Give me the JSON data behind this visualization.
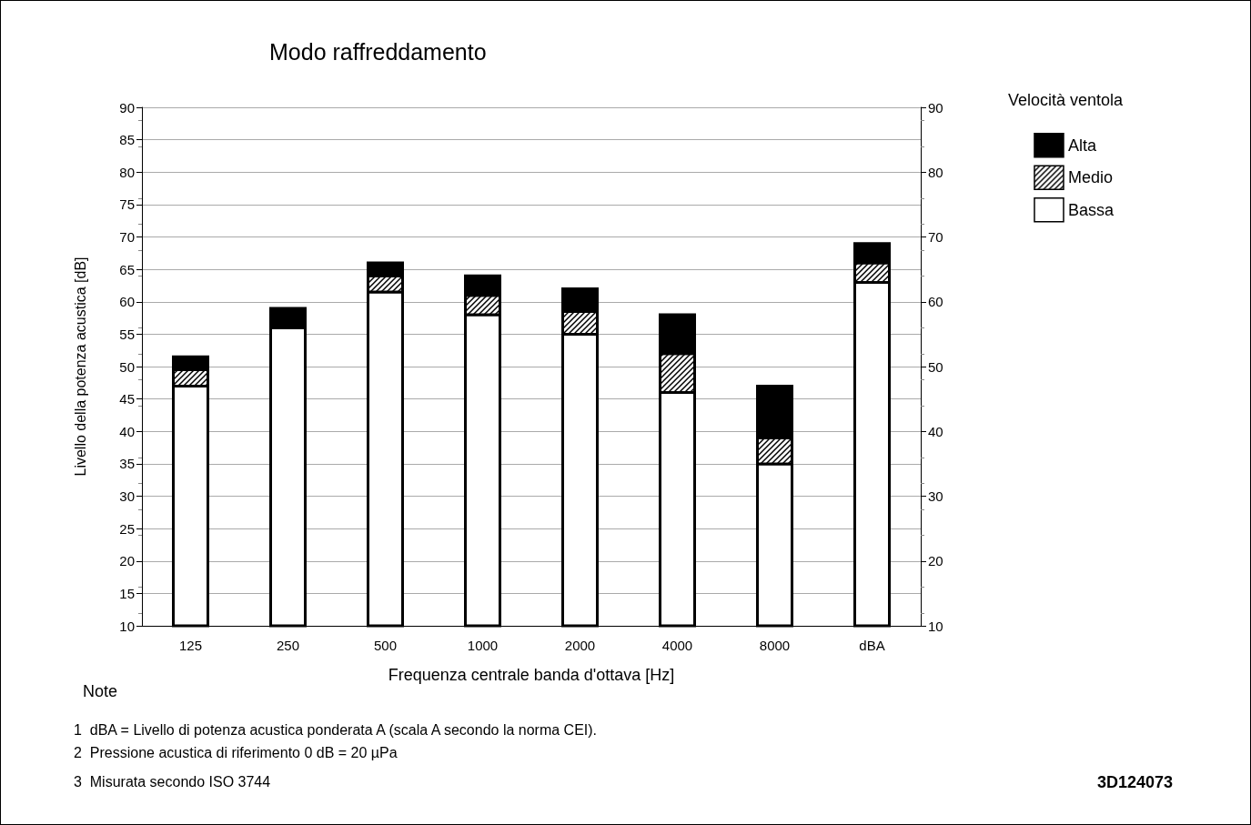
{
  "chart_data": {
    "type": "bar",
    "title": "Modo raffreddamento",
    "categories": [
      "125",
      "250",
      "500",
      "1000",
      "2000",
      "4000",
      "8000",
      "dBA"
    ],
    "series": [
      {
        "name": "Bassa",
        "color": "#ffffff",
        "base": [
          10,
          10,
          10,
          10,
          10,
          10,
          10,
          10
        ],
        "values": [
          37,
          46,
          51.5,
          48,
          45,
          36,
          25,
          53
        ]
      },
      {
        "name": "Medio",
        "color": "#000000",
        "base": [
          47,
          null,
          61.5,
          58,
          55,
          46,
          35,
          63
        ],
        "values": [
          2.5,
          null,
          2.5,
          3,
          3.5,
          6,
          4,
          3
        ]
      },
      {
        "name": "Alta",
        "color": "#000000",
        "base": [
          49.5,
          56,
          64,
          61,
          58.5,
          52,
          39,
          66
        ],
        "values": [
          2,
          3,
          2,
          3,
          3.5,
          6,
          8,
          3
        ]
      }
    ],
    "xlabel": "Frequenza centrale banda d'ottava [Hz]",
    "ylabel": "Livello della potenza acustica [dB]",
    "legend_title": "Velocità ventola",
    "ylim": [
      10,
      90
    ],
    "yticks": [
      10,
      15,
      20,
      25,
      30,
      35,
      40,
      45,
      50,
      55,
      60,
      65,
      70,
      75,
      80,
      85,
      90
    ],
    "y2lim": [
      10,
      90
    ],
    "y2ticks": [
      10,
      20,
      30,
      40,
      50,
      60,
      70,
      80,
      90
    ],
    "grid": "y",
    "legend": "top right",
    "annotations": [
      "Note",
      "1  dBA = Livello di potenza acustica ponderata A (scala A secondo la norma CEI).",
      "2  Pressione acustica di riferimento 0 dB = 20 µPa",
      "3  Misurata secondo ISO 3744",
      "3D124073"
    ]
  }
}
